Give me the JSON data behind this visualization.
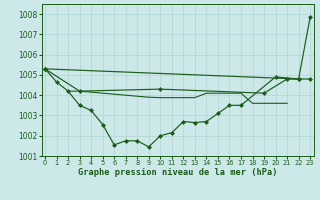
{
  "xlabel": "Graphe pression niveau de la mer (hPa)",
  "background_color": "#cce8e8",
  "grid_color": "#b0d4d4",
  "line_color": "#1a5c1a",
  "ylim": [
    1001,
    1008.5
  ],
  "xlim": [
    -0.3,
    23.3
  ],
  "yticks": [
    1001,
    1002,
    1003,
    1004,
    1005,
    1006,
    1007,
    1008
  ],
  "xticks": [
    0,
    1,
    2,
    3,
    4,
    5,
    6,
    7,
    8,
    9,
    10,
    11,
    12,
    13,
    14,
    15,
    16,
    17,
    18,
    19,
    20,
    21,
    22,
    23
  ],
  "series1": [
    1005.3,
    1004.65,
    1004.2,
    1003.5,
    1003.25,
    1002.55,
    1001.55,
    1001.75,
    1001.75,
    1001.45,
    1002.0,
    1002.15,
    1002.7,
    1002.65,
    1002.7,
    1003.1,
    1003.5,
    1003.5,
    null,
    null,
    1004.9,
    null,
    1004.8,
    null
  ],
  "series2_x": [
    0,
    3,
    10,
    19,
    21,
    22,
    23
  ],
  "series2_y": [
    1005.3,
    1004.2,
    1004.3,
    1004.1,
    1004.8,
    null,
    1004.8
  ],
  "series3_x": [
    0,
    22,
    23
  ],
  "series3_y": [
    1005.3,
    1004.8,
    1007.85
  ],
  "series4_x": [
    2,
    3,
    4,
    5,
    6,
    7,
    8,
    9,
    10,
    11,
    12,
    13,
    14,
    15,
    16,
    17,
    18,
    19,
    20,
    21
  ],
  "series4_y": [
    1004.2,
    1004.2,
    1004.15,
    1004.1,
    1004.05,
    1004.0,
    1003.95,
    1003.9,
    1003.88,
    1003.88,
    1003.88,
    1003.88,
    1004.1,
    1004.1,
    1004.1,
    1004.1,
    1003.6,
    1003.6,
    1003.6,
    1003.6
  ]
}
